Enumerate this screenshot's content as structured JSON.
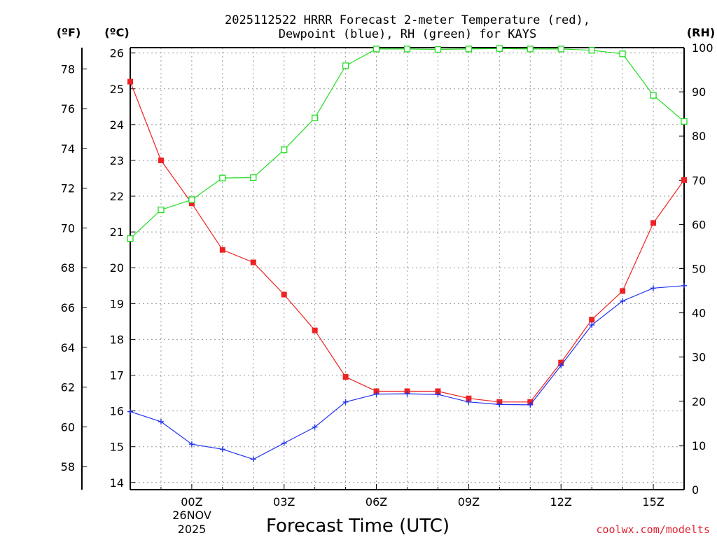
{
  "chart_data": {
    "type": "line",
    "title_line1": "2025112522 HRRR Forecast 2-meter Temperature (red),",
    "title_line2": "Dewpoint (blue), RH (green) for KAYS",
    "unit_f": "(ºF)",
    "unit_c": "(ºC)",
    "unit_rh": "(RH)",
    "xlabel": "Forecast Time (UTC)",
    "x_tick_labels": [
      {
        "hour": 0,
        "label": "00Z"
      },
      {
        "hour": 3,
        "label": "03Z"
      },
      {
        "hour": 6,
        "label": "06Z"
      },
      {
        "hour": 9,
        "label": "09Z"
      },
      {
        "hour": 12,
        "label": "12Z"
      },
      {
        "hour": 15,
        "label": "15Z"
      }
    ],
    "date_line1": "26NOV",
    "date_line2": "2025",
    "credit": "coolwx.com/modelts",
    "xlim": [
      -2,
      16
    ],
    "ylim_c": [
      13.8,
      26.15
    ],
    "ylim_rh": [
      0,
      100
    ],
    "yticks_c": [
      14,
      15,
      16,
      17,
      18,
      19,
      20,
      21,
      22,
      23,
      24,
      25,
      26
    ],
    "yticks_f": [
      58,
      60,
      62,
      64,
      66,
      68,
      70,
      72,
      74,
      76,
      78
    ],
    "yticks_rh": [
      0,
      10,
      20,
      30,
      40,
      50,
      60,
      70,
      80,
      90,
      100
    ],
    "hours": [
      -2,
      -1,
      0,
      1,
      2,
      3,
      4,
      5,
      6,
      7,
      8,
      9,
      10,
      11,
      12,
      13,
      14,
      15,
      16
    ],
    "series": [
      {
        "name": "Temperature",
        "color": "#ee2222",
        "marker": "filled-square",
        "values": [
          25.2,
          23.0,
          21.8,
          20.5,
          20.15,
          19.25,
          18.25,
          16.95,
          16.55,
          16.55,
          16.55,
          16.35,
          16.25,
          16.25,
          17.35,
          18.55,
          19.35,
          21.25,
          22.45
        ]
      },
      {
        "name": "Dewpoint",
        "color": "#2233ee",
        "marker": "plus",
        "values": [
          15.98,
          15.7,
          15.07,
          14.93,
          14.65,
          15.1,
          15.55,
          16.25,
          16.47,
          16.48,
          16.46,
          16.25,
          16.18,
          16.17,
          17.27,
          18.4,
          19.07,
          19.43,
          19.5
        ]
      },
      {
        "name": "RH",
        "color": "#22dd22",
        "marker": "open-square",
        "values": [
          56.8,
          63.3,
          65.6,
          70.5,
          70.6,
          76.9,
          84.1,
          95.9,
          99.7,
          99.7,
          99.6,
          99.7,
          99.8,
          99.7,
          99.7,
          99.4,
          98.6,
          89.2,
          83.3
        ]
      }
    ]
  }
}
